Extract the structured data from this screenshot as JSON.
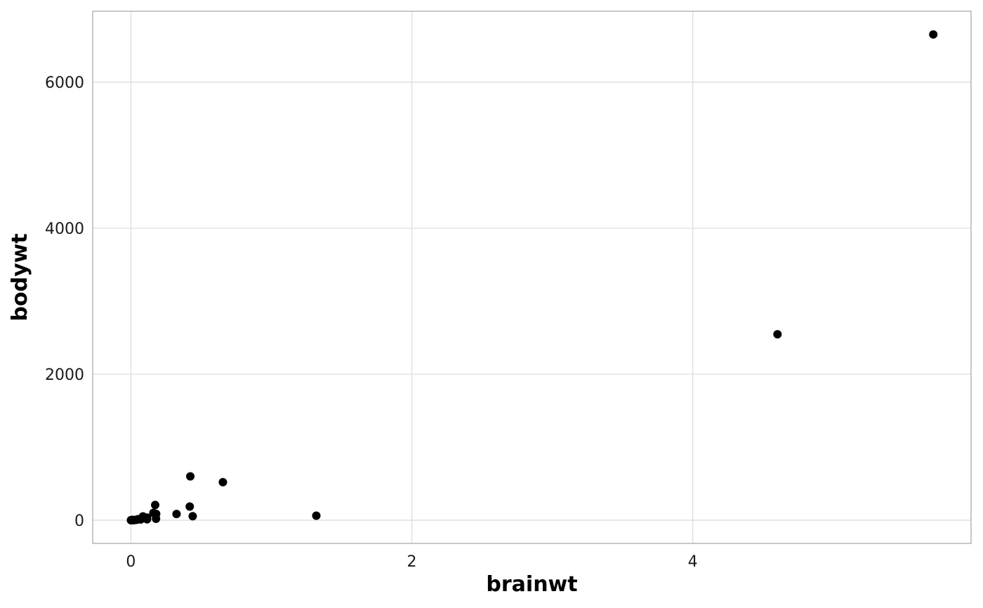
{
  "chart_data": {
    "type": "scatter",
    "xlabel": "brainwt",
    "ylabel": "bodywt",
    "xlim": [
      -0.272,
      5.981
    ],
    "ylim": [
      -318,
      6972
    ],
    "x_ticks": [
      0,
      2,
      4
    ],
    "y_ticks": [
      0,
      2000,
      4000,
      6000
    ],
    "x_tick_labels": [
      "0",
      "2",
      "4"
    ],
    "y_tick_labels": [
      "0",
      "2000",
      "4000",
      "6000"
    ],
    "grid": true,
    "point_color": "#000000",
    "points": [
      {
        "x": 5.712,
        "y": 6654
      },
      {
        "x": 4.603,
        "y": 2547
      },
      {
        "x": 1.32,
        "y": 62
      },
      {
        "x": 0.655,
        "y": 521
      },
      {
        "x": 0.423,
        "y": 600
      },
      {
        "x": 0.419,
        "y": 187
      },
      {
        "x": 0.44,
        "y": 55
      },
      {
        "x": 0.325,
        "y": 85
      },
      {
        "x": 0.173,
        "y": 208
      },
      {
        "x": 0.18,
        "y": 86
      },
      {
        "x": 0.179,
        "y": 20
      },
      {
        "x": 0.16,
        "y": 100
      },
      {
        "x": 0.115,
        "y": 35
      },
      {
        "x": 0.115,
        "y": 12
      },
      {
        "x": 0.086,
        "y": 52
      },
      {
        "x": 0.081,
        "y": 27
      },
      {
        "x": 0.07,
        "y": 10
      },
      {
        "x": 0.05,
        "y": 14
      },
      {
        "x": 0.04,
        "y": 5
      },
      {
        "x": 0.025,
        "y": 3
      },
      {
        "x": 0.02,
        "y": 1
      },
      {
        "x": 0.012,
        "y": 2
      },
      {
        "x": 0.01,
        "y": 4
      },
      {
        "x": 0.006,
        "y": 0.5
      },
      {
        "x": 0.004,
        "y": 0.3
      },
      {
        "x": 0.003,
        "y": 0.1
      },
      {
        "x": 0.001,
        "y": 0.02
      },
      {
        "x": 0.0003,
        "y": 0.005
      }
    ]
  }
}
